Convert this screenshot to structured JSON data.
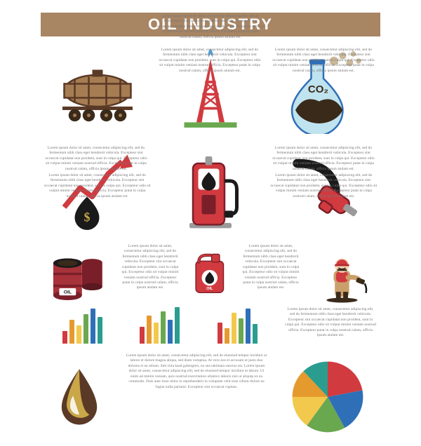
{
  "title": "OIL INDUSTRY",
  "title_bg": "#a88563",
  "title_color": "#ffffff",
  "title_fontsize": 22,
  "lorem_short": "Lorem ipsum dolor sit amet, consectetur adipiscing elit, sed do fermentum nibh class eget hendrerit vehicula. Excepteur sint occaecat cupidatat non proident, sunt in culpa qui. Excepteur odio sit vulput minim veniam nostrud officia. Excepteur putat in culpa nostrud calam, officia ipsum atulam est.",
  "lorem_long": "Lorem ipsum dolor sit amet, consectetur adipiscing elit, sed do eiusmod tempor incidunt ut labore et dolore magna aliqua, sed diam voluptua. At vero eos et accusam et justo duo dolores et ea rebum. Stet clita kasd gubergren, no sea takimata sanctus est. Lorem ipsum dolor sit amet, consectetur adipiscing elit, sed do eiusmod tempor incidunt ut labore. Ut enim ad minim veniam, quis nostrud exercitation ullamco laboris nisi ut aliquip ex ea commodo. Duis aute irure dolor in reprehenderit in voluptate velit esse cillum dolore eu fugiat nulla pariatur. Excepteur sint occaecat cupitan.",
  "colors": {
    "red": "#d13a3f",
    "darkred": "#7a1f29",
    "brown": "#5a3a26",
    "lightbrown": "#a67c52",
    "orange": "#e59a2e",
    "green": "#6aa84f",
    "teal": "#2a9d8f",
    "blue": "#2e6fb7",
    "yellow": "#f2c94c",
    "grey": "#888888",
    "text": "#777777"
  },
  "icons": {
    "tank_car_label": "",
    "barrel_label": "OIL",
    "jerrycan_label": "OIL",
    "flask_label": "CO₂"
  },
  "bar_charts": [
    {
      "values": [
        18,
        34,
        26,
        42,
        50,
        38
      ],
      "colors": [
        "#d13a3f",
        "#e59a2e",
        "#f2c94c",
        "#6aa84f",
        "#2e6fb7",
        "#2a9d8f"
      ]
    },
    {
      "values": [
        24,
        40,
        30,
        46,
        34,
        52
      ],
      "colors": [
        "#d13a3f",
        "#e59a2e",
        "#f2c94c",
        "#6aa84f",
        "#2e6fb7",
        "#2a9d8f"
      ]
    },
    {
      "values": [
        30,
        22,
        44,
        36,
        50,
        28
      ],
      "colors": [
        "#d13a3f",
        "#e59a2e",
        "#f2c94c",
        "#6aa84f",
        "#2e6fb7",
        "#2a9d8f"
      ]
    }
  ],
  "pie": {
    "slices": [
      {
        "value": 22,
        "color": "#d13a3f"
      },
      {
        "value": 20,
        "color": "#2e6fb7"
      },
      {
        "value": 18,
        "color": "#6aa84f"
      },
      {
        "value": 15,
        "color": "#f2c94c"
      },
      {
        "value": 13,
        "color": "#e59a2e"
      },
      {
        "value": 12,
        "color": "#2a9d8f"
      }
    ]
  }
}
